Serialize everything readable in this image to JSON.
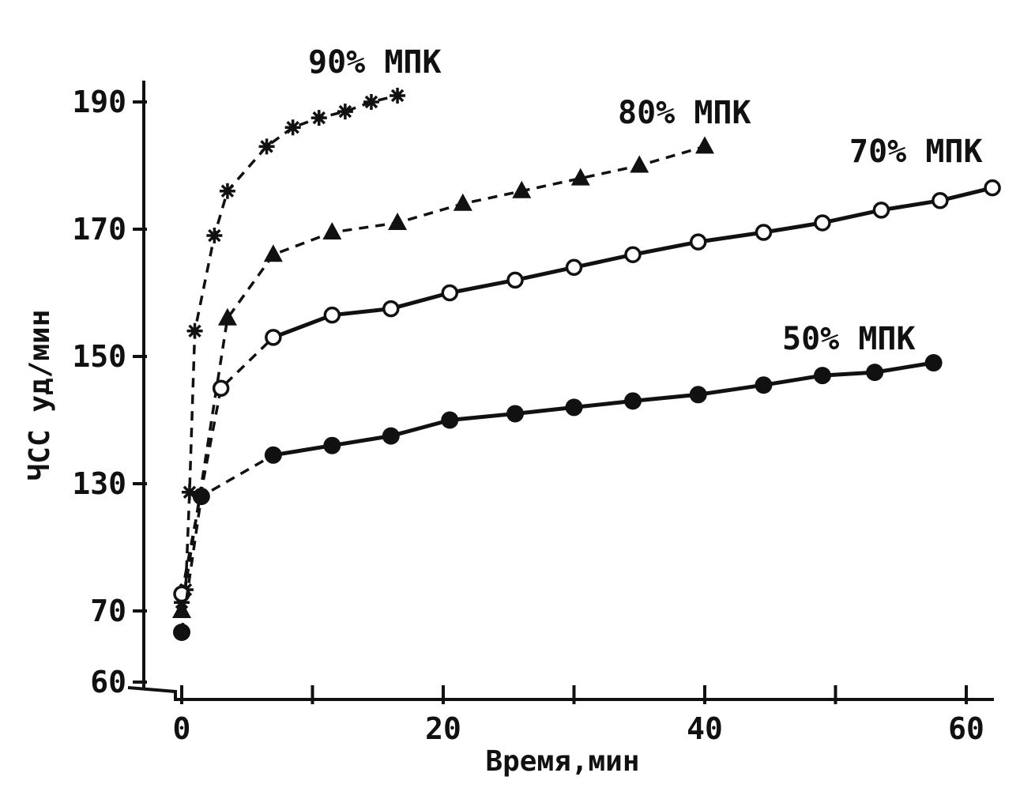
{
  "chart_data": {
    "type": "line",
    "title": "",
    "xlabel": "Время,мин",
    "ylabel": "ЧСС уд/мин",
    "x_ticks": [
      0,
      20,
      40,
      60
    ],
    "y_ticks": [
      60,
      70,
      130,
      150,
      170,
      190
    ],
    "xlim": [
      0,
      62
    ],
    "ylim": [
      60,
      190
    ],
    "y_axis_note": "broken scale: 60–70 tick spacing differs from 130–190",
    "grid": false,
    "legend": "none",
    "series": [
      {
        "name": "90% МПК",
        "marker": "star",
        "line": "dashed",
        "x": [
          0,
          0.3,
          0.6,
          1,
          2.5,
          3.5,
          6.5,
          8.5,
          10.5,
          12.5,
          14.5,
          16.5
        ],
        "y": [
          74,
          80,
          126,
          154,
          169,
          176,
          183,
          186,
          187.5,
          188.5,
          190,
          191
        ]
      },
      {
        "name": "80% МПК",
        "marker": "triangle",
        "line": "dashed",
        "x": [
          0,
          3.5,
          7,
          11.5,
          16.5,
          21.5,
          26,
          30.5,
          35,
          40
        ],
        "y": [
          70,
          156,
          166,
          169.5,
          171,
          174,
          176,
          178,
          180,
          183
        ]
      },
      {
        "name": "70% МПК",
        "marker": "circle-open",
        "line": "dashed-then-solid",
        "x": [
          0,
          3,
          7,
          11.5,
          16,
          20.5,
          25.5,
          30,
          34.5,
          39.5,
          44.5,
          49,
          53.5,
          58,
          62
        ],
        "y": [
          78,
          145,
          153,
          156.5,
          157.5,
          160,
          162,
          164,
          166,
          168,
          169.5,
          171,
          173,
          174.5,
          176.5
        ]
      },
      {
        "name": "50% МПК",
        "marker": "circle-filled",
        "line": "dashed-then-solid",
        "x": [
          0,
          1.5,
          7,
          11.5,
          16,
          20.5,
          25.5,
          30,
          34.5,
          39.5,
          44.5,
          49,
          53,
          57.5
        ],
        "y": [
          67,
          124,
          134.5,
          136,
          137.5,
          140,
          141,
          142,
          143,
          144,
          145.5,
          147,
          147.5,
          149
        ]
      }
    ]
  }
}
